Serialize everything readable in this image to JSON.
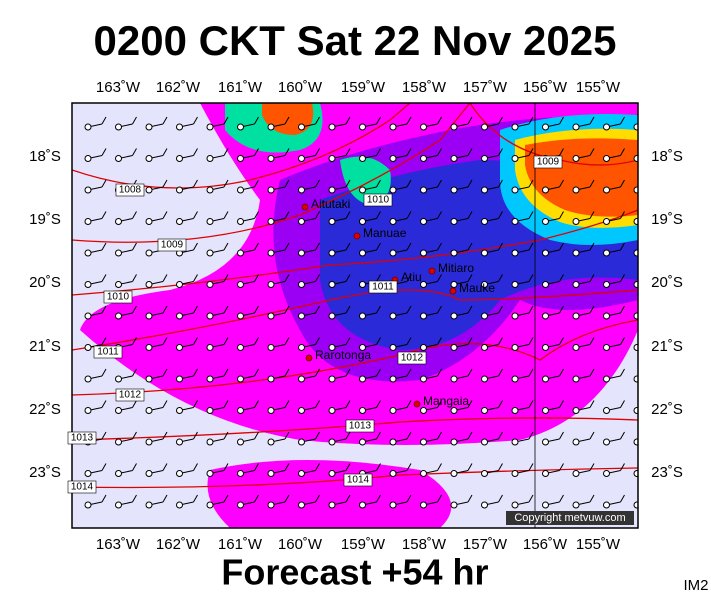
{
  "header": {
    "title": "0200 CKT Sat 22 Nov 2025"
  },
  "map": {
    "longitude_labels": [
      "163˚W",
      "162˚W",
      "161˚W",
      "160˚W",
      "159˚W",
      "158˚W",
      "157˚W",
      "156˚W",
      "155˚W"
    ],
    "latitude_labels": [
      "18˚S",
      "19˚S",
      "20˚S",
      "21˚S",
      "22˚S",
      "23˚S"
    ],
    "places": [
      "Aitutaki",
      "Manuae",
      "Atiu",
      "Mitiaro",
      "Mauke",
      "Rarotonga",
      "Mangaia"
    ],
    "isobar_labels": [
      "1008",
      "1009",
      "1010",
      "1011",
      "1012",
      "1013",
      "1014",
      "1010",
      "1011",
      "1012",
      "1013",
      "1014",
      "1009"
    ],
    "copyright": "Copyright metvuw.com"
  },
  "footer": {
    "forecast": "Forecast +54 hr",
    "code": "IM2"
  }
}
